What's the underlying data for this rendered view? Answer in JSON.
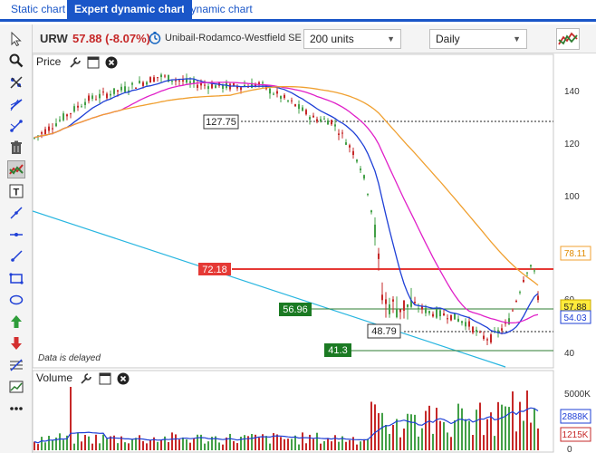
{
  "tabs": [
    {
      "label": "Static chart",
      "active": false
    },
    {
      "label": "Expert dynamic chart",
      "active": true
    },
    {
      "label": "Dynamic chart",
      "active": false
    }
  ],
  "toolbar": {
    "icons": [
      "cursor-icon",
      "zoom-icon",
      "hand-icon",
      "crosshair-icon",
      "trendline-icon",
      "trash-icon",
      "chart-type-icon",
      "text-icon",
      "line-icon",
      "horizontal-line-icon",
      "ray-icon",
      "rectangle-icon",
      "ellipse-icon",
      "arrow-up-icon",
      "arrow-down-icon",
      "fibonacci-icon",
      "chart-settings-icon",
      "more-icon"
    ]
  },
  "header": {
    "symbol": "URW",
    "price": "57.88 (-8.07%)",
    "company": "Unibail-Rodamco-Westfield SE",
    "units_select": "200 units",
    "period_select": "Daily"
  },
  "price_panel": {
    "title": "Price",
    "delayed_note": "Data is delayed",
    "y_ticks": [
      "140",
      "120",
      "100",
      "60",
      "40"
    ],
    "level_labels": [
      "127.75",
      "72.18",
      "56.96",
      "48.79",
      "41.3"
    ],
    "right_labels": [
      "78.11",
      "57.88",
      "54.03"
    ]
  },
  "volume_panel": {
    "title": "Volume",
    "y_ticks": [
      "5000K",
      "0"
    ],
    "right_labels": [
      "2888K",
      "1215K"
    ]
  },
  "colors": {
    "tab_active": "#1a56c8",
    "price_down": "#c62828",
    "candle_up": "#43a047",
    "candle_down": "#c62828",
    "ma_fast": "#1e3fd6",
    "ma_mid": "#e020c8",
    "ma_slow": "#f0a030",
    "trend_cyan": "#29b6e0"
  }
}
